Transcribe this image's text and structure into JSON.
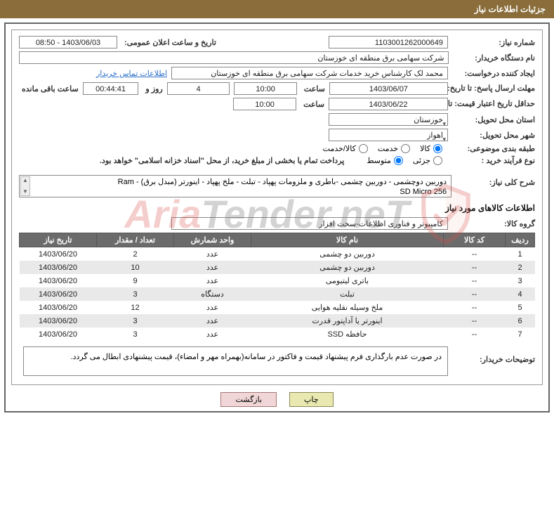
{
  "header": {
    "title": "جزئیات اطلاعات نیاز"
  },
  "fields": {
    "need_no_label": "شماره نیاز:",
    "need_no": "1103001262000649",
    "announce_dt_label": "تاریخ و ساعت اعلان عمومی:",
    "announce_dt": "1403/06/03 - 08:50",
    "buyer_org_label": "نام دستگاه خریدار:",
    "buyer_org": "شرکت سهامی برق منطقه ای خوزستان",
    "requester_label": "ایجاد کننده درخواست:",
    "requester": "محمد لک کارشناس خرید خدمات شرکت سهامی برق منطقه ای خوزستان",
    "buyer_contact": "اطلاعات تماس خریدار",
    "deadline_label": "مهلت ارسال پاسخ: تا تاریخ:",
    "deadline_date": "1403/06/07",
    "time_label": "ساعت",
    "deadline_time": "10:00",
    "days_left": "4",
    "days_and": "روز و",
    "hms_left": "00:44:41",
    "remaining_label": "ساعت باقی مانده",
    "validity_label": "حداقل تاریخ اعتبار قیمت: تا تاریخ:",
    "validity_date": "1403/06/22",
    "validity_time": "10:00",
    "deliv_prov_label": "استان محل تحویل:",
    "deliv_prov": "خوزستان",
    "deliv_city_label": "شهر محل تحویل:",
    "deliv_city": "اهواز",
    "class_label": "طبقه بندی موضوعی:",
    "radio_goods": "کالا",
    "radio_service": "خدمت",
    "radio_both": "کالا/خدمت",
    "proc_type_label": "نوع فرآیند خرید :",
    "radio_partial": "جزئی",
    "radio_mid": "متوسط",
    "proc_note": "پرداخت تمام یا بخشی از مبلغ خرید، از محل \"اسناد خزانه اسلامی\" خواهد بود.",
    "summary_label": "شرح کلی نیاز:",
    "summary": "دوربین دوچشمی - دوربین چشمی -باطری و ملزومات پهپاد - تبلت - ملخ پهپاد - اینورتر (مبدل برق) - Ram\n256 SD Micro",
    "section_goods": "اطلاعات کالاهای مورد نیاز",
    "group_label": "گروه کالا:",
    "group": "کامپیوتر و فناوری اطلاعات-سخت افزار",
    "buyer_notes_label": "توضیحات خریدار:",
    "buyer_notes": "در صورت عدم بارگذاری فرم پیشنهاد قیمت و فاکتور در سامانه(بهمراه مهر و امضاء)، قیمت پیشنهادی ابطال می گردد."
  },
  "table": {
    "h_row": "ردیف",
    "h_code": "کد کالا",
    "h_name": "نام کالا",
    "h_unit": "واحد شمارش",
    "h_qty": "تعداد / مقدار",
    "h_date": "تاریخ نیاز",
    "rows": [
      {
        "n": "1",
        "code": "--",
        "name": "دوربین دو چشمی",
        "unit": "عدد",
        "qty": "2",
        "date": "1403/06/20"
      },
      {
        "n": "2",
        "code": "--",
        "name": "دوربین دو چشمی",
        "unit": "عدد",
        "qty": "10",
        "date": "1403/06/20"
      },
      {
        "n": "3",
        "code": "--",
        "name": "باتری لیتیومی",
        "unit": "عدد",
        "qty": "9",
        "date": "1403/06/20"
      },
      {
        "n": "4",
        "code": "--",
        "name": "تبلت",
        "unit": "دستگاه",
        "qty": "3",
        "date": "1403/06/20"
      },
      {
        "n": "5",
        "code": "--",
        "name": "ملخ وسیله نقلیه هوایی",
        "unit": "عدد",
        "qty": "12",
        "date": "1403/06/20"
      },
      {
        "n": "6",
        "code": "--",
        "name": "اینورتر یا آداپتور قدرت",
        "unit": "عدد",
        "qty": "3",
        "date": "1403/06/20"
      },
      {
        "n": "7",
        "code": "--",
        "name": "حافظه SSD",
        "unit": "عدد",
        "qty": "3",
        "date": "1403/06/20"
      }
    ]
  },
  "buttons": {
    "print": "چاپ",
    "back": "بازگشت"
  },
  "watermark": {
    "text_a": "Aria",
    "text_b": "Tender.neT"
  }
}
